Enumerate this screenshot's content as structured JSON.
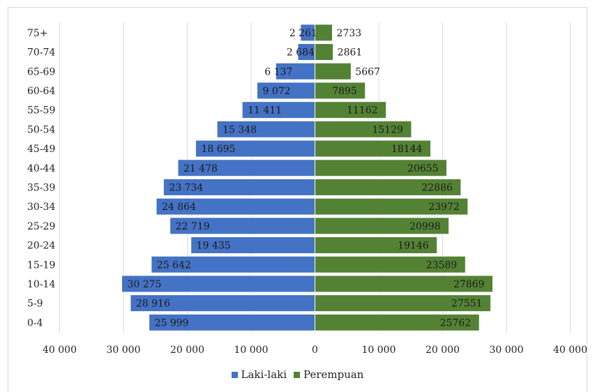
{
  "chart_data": {
    "type": "bar",
    "orientation": "horizontal-population-pyramid",
    "categories": [
      "0-4",
      "5-9",
      "10-14",
      "15-19",
      "20-24",
      "25-29",
      "30-34",
      "35-39",
      "40-44",
      "45-49",
      "50-54",
      "55-59",
      "60-64",
      "65-69",
      "70-74",
      "75+"
    ],
    "series": [
      {
        "name": "Laki-laki",
        "color": "#4472c4",
        "values": [
          25999,
          28916,
          30275,
          25642,
          19435,
          22719,
          24864,
          23734,
          21478,
          18695,
          15348,
          11411,
          9072,
          6137,
          2684,
          2261
        ],
        "labels": [
          "25 999",
          "28 916",
          "30 275",
          "25 642",
          "19 435",
          "22 719",
          "24 864",
          "23 734",
          "21 478",
          "18 695",
          "15 348",
          "11 411",
          "9 072",
          "6 137",
          "2 684",
          "2 261"
        ]
      },
      {
        "name": "Perempuan",
        "color": "#548235",
        "values": [
          25762,
          27551,
          27869,
          23589,
          19146,
          20998,
          23972,
          22886,
          20655,
          18144,
          15129,
          11162,
          7895,
          5667,
          2861,
          2733
        ],
        "labels": [
          "25762",
          "27551",
          "27869",
          "23589",
          "19146",
          "20998",
          "23972",
          "22886",
          "20655",
          "18144",
          "15129",
          "11162",
          "7895",
          "5667",
          "2861",
          "2733"
        ]
      }
    ],
    "x_ticks": [
      -40000,
      -30000,
      -20000,
      -10000,
      0,
      10000,
      20000,
      30000,
      40000
    ],
    "x_tick_labels": [
      "40 000",
      "30 000",
      "20 000",
      "10 000",
      "0",
      "10 000",
      "20 000",
      "30 000",
      "40 000"
    ],
    "xlim": [
      -40000,
      40000
    ],
    "grid": "vertical",
    "legend_position": "bottom"
  }
}
